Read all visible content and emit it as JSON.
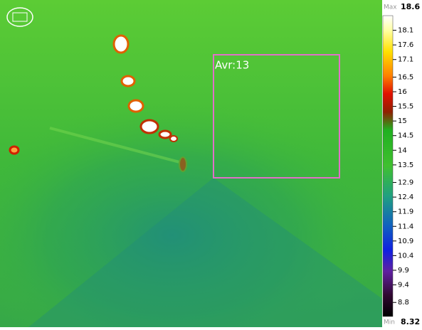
{
  "region": {
    "label": "Avr:13"
  },
  "scale": {
    "max_label": "Max",
    "max": 18.6,
    "min_label": "Min",
    "min": 8.32,
    "ticks": [
      18.1,
      17.6,
      17.1,
      16.5,
      16,
      15.5,
      15,
      14.5,
      14,
      13.5,
      12.9,
      12.4,
      11.9,
      11.4,
      10.9,
      10.4,
      9.9,
      9.4,
      8.8
    ]
  }
}
